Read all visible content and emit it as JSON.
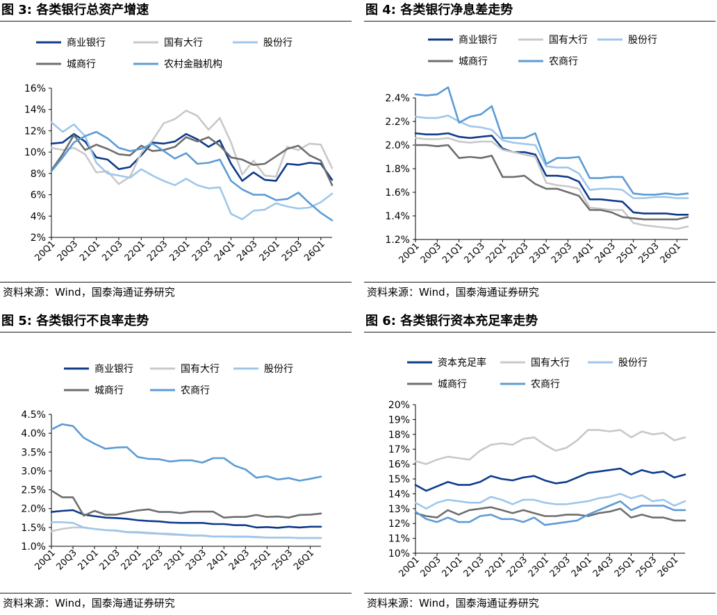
{
  "source_note": "资料来源：Wind，国泰海通证券研究",
  "chart_data": [
    {
      "type": "line",
      "title": "图 3:  各类银行总资产增速",
      "ylim": [
        0.02,
        0.16
      ],
      "yticks": [
        "2%",
        "4%",
        "6%",
        "8%",
        "10%",
        "12%",
        "14%",
        "16%"
      ],
      "categories": [
        "20Q1",
        "20Q2",
        "20Q3",
        "20Q4",
        "21Q1",
        "21Q2",
        "21Q3",
        "21Q4",
        "22Q1",
        "22Q2",
        "22Q3",
        "22Q4",
        "23Q1",
        "23Q2",
        "23Q3",
        "23Q4",
        "24Q1",
        "24Q2",
        "24Q3",
        "24Q4",
        "25Q1",
        "25Q2",
        "25Q3",
        "25Q4",
        "26Q1",
        "26Q2"
      ],
      "xticks": [
        "20Q1",
        "20Q3",
        "21Q1",
        "21Q3",
        "22Q1",
        "22Q3",
        "23Q1",
        "23Q3",
        "24Q1",
        "24Q3",
        "25Q1",
        "25Q3",
        "26Q1"
      ],
      "grid": false,
      "legend_position": "top",
      "series": [
        {
          "name": "商业银行",
          "color": "#0d3a8a",
          "values": [
            0.108,
            0.109,
            0.117,
            0.11,
            0.095,
            0.093,
            0.084,
            0.086,
            0.097,
            0.109,
            0.108,
            0.11,
            0.117,
            0.112,
            0.105,
            0.111,
            0.089,
            0.073,
            0.081,
            0.074,
            0.073,
            0.089,
            0.088,
            0.09,
            0.089,
            0.074
          ]
        },
        {
          "name": "国有大行",
          "color": "#c8c8c8",
          "values": [
            0.104,
            0.102,
            0.104,
            0.098,
            0.081,
            0.082,
            0.07,
            0.077,
            0.099,
            0.111,
            0.127,
            0.131,
            0.139,
            0.134,
            0.121,
            0.132,
            0.109,
            0.079,
            0.092,
            0.078,
            0.077,
            0.105,
            0.102,
            0.108,
            0.107,
            0.085
          ]
        },
        {
          "name": "股份行",
          "color": "#9ec6ea",
          "values": [
            0.128,
            0.119,
            0.126,
            0.115,
            0.09,
            0.08,
            0.078,
            0.076,
            0.084,
            0.078,
            0.073,
            0.069,
            0.075,
            0.069,
            0.066,
            0.067,
            0.042,
            0.037,
            0.045,
            0.046,
            0.052,
            0.049,
            0.047,
            0.048,
            0.053,
            0.061
          ]
        },
        {
          "name": "城商行",
          "color": "#6d6d6d",
          "values": [
            0.083,
            0.098,
            0.116,
            0.102,
            0.107,
            0.103,
            0.098,
            0.097,
            0.106,
            0.101,
            0.102,
            0.105,
            0.114,
            0.11,
            0.114,
            0.106,
            0.095,
            0.093,
            0.088,
            0.089,
            0.096,
            0.103,
            0.106,
            0.097,
            0.092,
            0.069
          ]
        },
        {
          "name": "农村金融机构",
          "color": "#5b9bd5",
          "values": [
            0.082,
            0.095,
            0.109,
            0.115,
            0.119,
            0.113,
            0.104,
            0.101,
            0.103,
            0.108,
            0.101,
            0.094,
            0.099,
            0.089,
            0.09,
            0.093,
            0.073,
            0.065,
            0.06,
            0.06,
            0.055,
            0.056,
            0.062,
            0.052,
            0.043,
            0.036
          ]
        }
      ]
    },
    {
      "type": "line",
      "title": "图 4:  各类银行净息差走势",
      "ylim": [
        0.012,
        0.024
      ],
      "yticks": [
        "1.2%",
        "1.4%",
        "1.6%",
        "1.8%",
        "2.0%",
        "2.2%",
        "2.4%"
      ],
      "categories": [
        "20Q1",
        "20Q2",
        "20Q3",
        "20Q4",
        "21Q1",
        "21Q2",
        "21Q3",
        "21Q4",
        "22Q1",
        "22Q2",
        "22Q3",
        "22Q4",
        "23Q1",
        "23Q2",
        "23Q3",
        "23Q4",
        "24Q1",
        "24Q2",
        "24Q3",
        "24Q4",
        "25Q1",
        "25Q2",
        "25Q3",
        "25Q4",
        "26Q1",
        "26Q2"
      ],
      "xticks": [
        "20Q1",
        "20Q3",
        "21Q1",
        "21Q3",
        "22Q1",
        "22Q3",
        "23Q1",
        "23Q3",
        "24Q1",
        "24Q3",
        "25Q1",
        "25Q3",
        "26Q1"
      ],
      "grid": false,
      "legend_position": "top",
      "series": [
        {
          "name": "商业银行",
          "color": "#0d3a8a",
          "values": [
            0.021,
            0.0209,
            0.0209,
            0.021,
            0.0207,
            0.0206,
            0.0207,
            0.0208,
            0.0197,
            0.0194,
            0.0194,
            0.0192,
            0.0174,
            0.0174,
            0.0173,
            0.0169,
            0.0154,
            0.0154,
            0.0153,
            0.0152,
            0.0143,
            0.0142,
            0.0142,
            0.0142,
            0.0141,
            0.0141
          ]
        },
        {
          "name": "国有大行",
          "color": "#c8c8c8",
          "values": [
            0.0206,
            0.0205,
            0.0205,
            0.0206,
            0.0203,
            0.0202,
            0.0203,
            0.0203,
            0.0196,
            0.0194,
            0.0192,
            0.019,
            0.0168,
            0.0166,
            0.0165,
            0.0163,
            0.0147,
            0.0146,
            0.0145,
            0.0145,
            0.0134,
            0.0132,
            0.0131,
            0.013,
            0.0129,
            0.0131
          ]
        },
        {
          "name": "股份行",
          "color": "#9ec6ea",
          "values": [
            0.0224,
            0.0223,
            0.0223,
            0.0225,
            0.022,
            0.0216,
            0.0215,
            0.0213,
            0.0204,
            0.0202,
            0.0201,
            0.02,
            0.0182,
            0.0181,
            0.0181,
            0.0176,
            0.0162,
            0.0163,
            0.0163,
            0.0162,
            0.0155,
            0.0155,
            0.0156,
            0.0156,
            0.0155,
            0.0155
          ]
        },
        {
          "name": "城商行",
          "color": "#6d6d6d",
          "values": [
            0.02,
            0.02,
            0.0199,
            0.02,
            0.0189,
            0.019,
            0.0189,
            0.0191,
            0.0173,
            0.0173,
            0.0174,
            0.0167,
            0.0163,
            0.0163,
            0.016,
            0.0157,
            0.0145,
            0.0145,
            0.0143,
            0.0139,
            0.0138,
            0.0137,
            0.0137,
            0.0137,
            0.0137,
            0.0139
          ]
        },
        {
          "name": "农商行",
          "color": "#5b9bd5",
          "values": [
            0.0243,
            0.0242,
            0.0243,
            0.0249,
            0.0219,
            0.0224,
            0.0226,
            0.0233,
            0.0206,
            0.0206,
            0.0206,
            0.021,
            0.0184,
            0.0189,
            0.0189,
            0.019,
            0.0172,
            0.0172,
            0.0173,
            0.0173,
            0.0159,
            0.0158,
            0.0158,
            0.0159,
            0.0158,
            0.0159
          ]
        }
      ]
    },
    {
      "type": "line",
      "title": "图 5:  各类银行不良率走势",
      "ylim": [
        0.01,
        0.045
      ],
      "yticks": [
        "1.0%",
        "1.5%",
        "2.0%",
        "2.5%",
        "3.0%",
        "3.5%",
        "4.0%",
        "4.5%"
      ],
      "categories": [
        "20Q1",
        "20Q2",
        "20Q3",
        "20Q4",
        "21Q1",
        "21Q2",
        "21Q3",
        "21Q4",
        "22Q1",
        "22Q2",
        "22Q3",
        "22Q4",
        "23Q1",
        "23Q2",
        "23Q3",
        "23Q4",
        "24Q1",
        "24Q2",
        "24Q3",
        "24Q4",
        "25Q1",
        "25Q2",
        "25Q3",
        "25Q4",
        "26Q1",
        "26Q2"
      ],
      "xticks": [
        "20Q1",
        "20Q3",
        "21Q1",
        "21Q3",
        "22Q1",
        "22Q3",
        "23Q1",
        "23Q3",
        "24Q1",
        "24Q3",
        "25Q1",
        "25Q3",
        "26Q1"
      ],
      "grid": false,
      "legend_position": "top",
      "series": [
        {
          "name": "商业银行",
          "color": "#0d3a8a",
          "values": [
            0.0191,
            0.0194,
            0.0196,
            0.0184,
            0.018,
            0.0176,
            0.0175,
            0.0173,
            0.0169,
            0.0167,
            0.0166,
            0.0163,
            0.0162,
            0.0162,
            0.0162,
            0.0159,
            0.0159,
            0.0156,
            0.0156,
            0.015,
            0.0151,
            0.0149,
            0.0152,
            0.015,
            0.0152,
            0.0152
          ]
        },
        {
          "name": "国有大行",
          "color": "#c8c8c8",
          "values": [
            0.014,
            0.0146,
            0.015,
            0.015,
            0.0146,
            0.0143,
            0.0141,
            0.0137,
            0.0136,
            0.0134,
            0.0133,
            0.0131,
            0.013,
            0.0128,
            0.0128,
            0.0126,
            0.0126,
            0.0125,
            0.0125,
            0.0124,
            0.0123,
            0.0123,
            0.0123,
            0.0122,
            0.0122,
            0.0122
          ]
        },
        {
          "name": "股份行",
          "color": "#9ec6ea",
          "values": [
            0.0164,
            0.0164,
            0.0162,
            0.015,
            0.0146,
            0.0143,
            0.0142,
            0.0138,
            0.0138,
            0.0136,
            0.0134,
            0.0133,
            0.0131,
            0.0129,
            0.0129,
            0.0126,
            0.0126,
            0.0126,
            0.0126,
            0.0125,
            0.0123,
            0.0123,
            0.0123,
            0.0122,
            0.0122,
            0.0122
          ]
        },
        {
          "name": "城商行",
          "color": "#6d6d6d",
          "values": [
            0.0248,
            0.023,
            0.023,
            0.0181,
            0.0194,
            0.0184,
            0.0184,
            0.019,
            0.0195,
            0.0198,
            0.0191,
            0.0191,
            0.0188,
            0.0192,
            0.0192,
            0.0192,
            0.0176,
            0.0178,
            0.0178,
            0.0183,
            0.0178,
            0.0179,
            0.0176,
            0.0183,
            0.0184,
            0.0187
          ]
        },
        {
          "name": "农商行",
          "color": "#5b9bd5",
          "values": [
            0.041,
            0.0424,
            0.0419,
            0.0388,
            0.0372,
            0.0359,
            0.0362,
            0.0363,
            0.0337,
            0.0332,
            0.0331,
            0.0325,
            0.0328,
            0.0328,
            0.0322,
            0.0334,
            0.0334,
            0.0314,
            0.0304,
            0.0282,
            0.0286,
            0.0277,
            0.0281,
            0.0274,
            0.0279,
            0.0285
          ]
        }
      ]
    },
    {
      "type": "line",
      "title": "图 6:  各类银行资本充足率走势",
      "ylim": [
        0.1,
        0.2
      ],
      "yticks": [
        "10%",
        "11%",
        "12%",
        "13%",
        "14%",
        "15%",
        "16%",
        "17%",
        "18%",
        "19%",
        "20%"
      ],
      "categories": [
        "20Q1",
        "20Q2",
        "20Q3",
        "20Q4",
        "21Q1",
        "21Q2",
        "21Q3",
        "21Q4",
        "22Q1",
        "22Q2",
        "22Q3",
        "22Q4",
        "23Q1",
        "23Q2",
        "23Q3",
        "23Q4",
        "24Q1",
        "24Q2",
        "24Q3",
        "24Q4",
        "25Q1",
        "25Q2",
        "25Q3",
        "25Q4",
        "26Q1",
        "26Q2"
      ],
      "xticks": [
        "20Q1",
        "20Q3",
        "21Q1",
        "21Q3",
        "22Q1",
        "22Q3",
        "23Q1",
        "23Q3",
        "24Q1",
        "24Q3",
        "25Q1",
        "25Q3",
        "26Q1"
      ],
      "grid": false,
      "legend_position": "top",
      "series": [
        {
          "name": "资本充足率",
          "color": "#0d3a8a",
          "values": [
            0.146,
            0.142,
            0.145,
            0.148,
            0.146,
            0.146,
            0.148,
            0.152,
            0.15,
            0.149,
            0.151,
            0.152,
            0.149,
            0.147,
            0.148,
            0.151,
            0.154,
            0.155,
            0.156,
            0.157,
            0.153,
            0.156,
            0.154,
            0.155,
            0.151,
            0.153
          ]
        },
        {
          "name": "国有大行",
          "color": "#c8c8c8",
          "values": [
            0.162,
            0.16,
            0.163,
            0.165,
            0.164,
            0.163,
            0.169,
            0.173,
            0.174,
            0.173,
            0.177,
            0.178,
            0.173,
            0.169,
            0.171,
            0.176,
            0.183,
            0.183,
            0.182,
            0.183,
            0.178,
            0.182,
            0.18,
            0.181,
            0.176,
            0.178
          ]
        },
        {
          "name": "股份行",
          "color": "#9ec6ea",
          "values": [
            0.134,
            0.13,
            0.134,
            0.136,
            0.135,
            0.134,
            0.134,
            0.138,
            0.136,
            0.133,
            0.136,
            0.136,
            0.134,
            0.133,
            0.133,
            0.134,
            0.135,
            0.137,
            0.138,
            0.14,
            0.137,
            0.139,
            0.135,
            0.136,
            0.132,
            0.135
          ]
        },
        {
          "name": "城商行",
          "color": "#6d6d6d",
          "values": [
            0.127,
            0.125,
            0.124,
            0.129,
            0.126,
            0.129,
            0.13,
            0.131,
            0.129,
            0.127,
            0.129,
            0.127,
            0.125,
            0.125,
            0.126,
            0.126,
            0.125,
            0.127,
            0.128,
            0.13,
            0.124,
            0.126,
            0.124,
            0.124,
            0.122,
            0.122
          ]
        },
        {
          "name": "农商行",
          "color": "#5b9bd5",
          "values": [
            0.128,
            0.123,
            0.121,
            0.124,
            0.121,
            0.121,
            0.125,
            0.126,
            0.123,
            0.123,
            0.121,
            0.124,
            0.119,
            0.12,
            0.121,
            0.122,
            0.126,
            0.129,
            0.132,
            0.135,
            0.129,
            0.132,
            0.132,
            0.132,
            0.129,
            0.129
          ]
        }
      ]
    }
  ]
}
